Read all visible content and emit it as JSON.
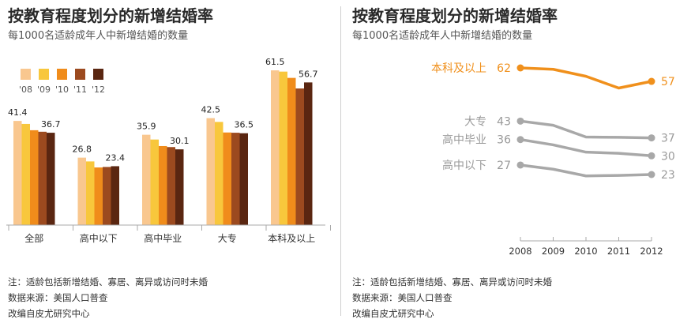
{
  "left": {
    "title": "按教育程度划分的新增结婚率",
    "subtitle": "每1000名适龄成年人中新增结婚的数量",
    "notes": {
      "note": "注：适龄包括新增结婚、寡居、离异或访问时未婚",
      "source": "数据来源：美国人口普查",
      "adapted": "改编自皮尤研究中心"
    }
  },
  "right": {
    "title": "按教育程度划分的新增结婚率",
    "subtitle": "每1000名适龄成年人中新增结婚的数量",
    "notes": {
      "note": "注：适龄包括新增结婚、寡居、离异或访问时未婚",
      "source": "数据来源：美国人口普查",
      "adapted": "改编自皮尤研究中心"
    }
  },
  "colors": {
    "years": [
      "#f9c78f",
      "#f8c73c",
      "#f08c1b",
      "#9c4a1f",
      "#5a2611"
    ],
    "highlight": "#f0901c",
    "gray_line": "#a8a8a8",
    "gray_text": "#9a9a9a",
    "axis": "#aaaaaa"
  },
  "chart_data": [
    {
      "type": "bar",
      "legend": [
        "'08",
        "'09",
        "'10",
        "'11",
        "'12"
      ],
      "legend_position": "top-left",
      "categories": [
        "全部",
        "高中以下",
        "高中毕业",
        "大专",
        "本科及以上"
      ],
      "series": [
        {
          "name": "'08",
          "values": [
            41.4,
            26.8,
            35.9,
            42.5,
            61.5
          ]
        },
        {
          "name": "'09",
          "values": [
            40.2,
            25.3,
            34.0,
            41.0,
            61.0
          ]
        },
        {
          "name": "'10",
          "values": [
            37.7,
            22.9,
            31.4,
            36.8,
            58.5
          ]
        },
        {
          "name": "'11",
          "values": [
            37.1,
            23.1,
            31.0,
            36.7,
            54.3
          ]
        },
        {
          "name": "'12",
          "values": [
            36.7,
            23.4,
            30.1,
            36.5,
            56.7
          ]
        }
      ],
      "labels": [
        {
          "category": 0,
          "series": 0,
          "text": "41.4"
        },
        {
          "category": 0,
          "series": 4,
          "text": "36.7"
        },
        {
          "category": 1,
          "series": 0,
          "text": "26.8"
        },
        {
          "category": 1,
          "series": 4,
          "text": "23.4"
        },
        {
          "category": 2,
          "series": 0,
          "text": "35.9"
        },
        {
          "category": 2,
          "series": 4,
          "text": "30.1"
        },
        {
          "category": 3,
          "series": 0,
          "text": "42.5"
        },
        {
          "category": 3,
          "series": 4,
          "text": "36.5"
        },
        {
          "category": 4,
          "series": 0,
          "text": "61.5"
        },
        {
          "category": 4,
          "series": 4,
          "text": "56.7"
        }
      ],
      "ylim": [
        0,
        70
      ],
      "grid": false
    },
    {
      "type": "line",
      "x": [
        "2008",
        "2009",
        "2010",
        "2011",
        "2012"
      ],
      "series": [
        {
          "name": "本科及以上",
          "highlight": true,
          "values": [
            61.5,
            61.0,
            58.5,
            54.3,
            56.7
          ],
          "start_label": "62",
          "end_label": "57"
        },
        {
          "name": "大专",
          "highlight": false,
          "values": [
            42.5,
            41.0,
            36.8,
            36.7,
            36.5
          ],
          "start_label": "43",
          "end_label": "37"
        },
        {
          "name": "高中毕业",
          "highlight": false,
          "values": [
            35.9,
            34.0,
            31.4,
            31.0,
            30.1
          ],
          "start_label": "36",
          "end_label": "30"
        },
        {
          "name": "高中以下",
          "highlight": false,
          "values": [
            26.8,
            25.3,
            22.9,
            23.1,
            23.4
          ],
          "start_label": "27",
          "end_label": "23"
        }
      ],
      "ylim": [
        0,
        70
      ],
      "grid": false
    }
  ]
}
